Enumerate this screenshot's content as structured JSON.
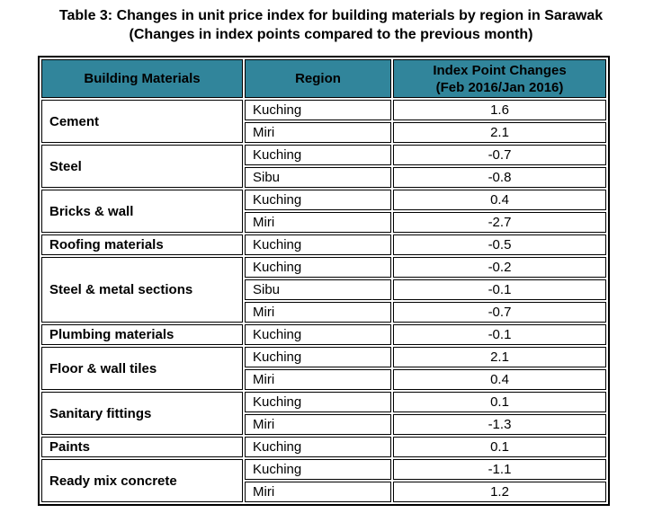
{
  "title": {
    "line1": "Table 3: Changes in unit price index for building materials by region in Sarawak",
    "line2": "(Changes in index points compared to the previous month)"
  },
  "colors": {
    "header_bg": "#31859B",
    "border": "#000000",
    "text": "#000000",
    "page_bg": "#ffffff"
  },
  "table": {
    "headers": {
      "material": "Building Materials",
      "region": "Region",
      "index_change_line1": "Index Point Changes",
      "index_change_line2": "(Feb 2016/Jan 2016)"
    },
    "groups": [
      {
        "material": "Cement",
        "rows": [
          {
            "region": "Kuching",
            "value": "1.6"
          },
          {
            "region": "Miri",
            "value": "2.1"
          }
        ]
      },
      {
        "material": "Steel",
        "rows": [
          {
            "region": "Kuching",
            "value": "-0.7"
          },
          {
            "region": "Sibu",
            "value": "-0.8"
          }
        ]
      },
      {
        "material": "Bricks & wall",
        "rows": [
          {
            "region": "Kuching",
            "value": "0.4"
          },
          {
            "region": "Miri",
            "value": "-2.7"
          }
        ]
      },
      {
        "material": "Roofing materials",
        "rows": [
          {
            "region": "Kuching",
            "value": "-0.5"
          }
        ]
      },
      {
        "material": "Steel & metal sections",
        "rows": [
          {
            "region": "Kuching",
            "value": "-0.2"
          },
          {
            "region": "Sibu",
            "value": "-0.1"
          },
          {
            "region": "Miri",
            "value": "-0.7"
          }
        ]
      },
      {
        "material": "Plumbing materials",
        "rows": [
          {
            "region": "Kuching",
            "value": "-0.1"
          }
        ]
      },
      {
        "material": "Floor & wall tiles",
        "rows": [
          {
            "region": "Kuching",
            "value": "2.1"
          },
          {
            "region": "Miri",
            "value": "0.4"
          }
        ]
      },
      {
        "material": "Sanitary fittings",
        "rows": [
          {
            "region": "Kuching",
            "value": "0.1"
          },
          {
            "region": "Miri",
            "value": "-1.3"
          }
        ]
      },
      {
        "material": "Paints",
        "rows": [
          {
            "region": "Kuching",
            "value": "0.1"
          }
        ]
      },
      {
        "material": "Ready mix concrete",
        "rows": [
          {
            "region": "Kuching",
            "value": "-1.1"
          },
          {
            "region": "Miri",
            "value": "1.2"
          }
        ]
      }
    ]
  },
  "chart_data": {
    "type": "table",
    "title": "Table 3: Changes in unit price index for building materials by region in Sarawak (Changes in index points compared to the previous month)",
    "columns": [
      "Building Materials",
      "Region",
      "Index Point Changes (Feb 2016/Jan 2016)"
    ],
    "rows": [
      [
        "Cement",
        "Kuching",
        1.6
      ],
      [
        "Cement",
        "Miri",
        2.1
      ],
      [
        "Steel",
        "Kuching",
        -0.7
      ],
      [
        "Steel",
        "Sibu",
        -0.8
      ],
      [
        "Bricks & wall",
        "Kuching",
        0.4
      ],
      [
        "Bricks & wall",
        "Miri",
        -2.7
      ],
      [
        "Roofing materials",
        "Kuching",
        -0.5
      ],
      [
        "Steel & metal sections",
        "Kuching",
        -0.2
      ],
      [
        "Steel & metal sections",
        "Sibu",
        -0.1
      ],
      [
        "Steel & metal sections",
        "Miri",
        -0.7
      ],
      [
        "Plumbing materials",
        "Kuching",
        -0.1
      ],
      [
        "Floor & wall tiles",
        "Kuching",
        2.1
      ],
      [
        "Floor & wall tiles",
        "Miri",
        0.4
      ],
      [
        "Sanitary fittings",
        "Kuching",
        0.1
      ],
      [
        "Sanitary fittings",
        "Miri",
        -1.3
      ],
      [
        "Paints",
        "Kuching",
        0.1
      ],
      [
        "Ready mix concrete",
        "Kuching",
        -1.1
      ],
      [
        "Ready mix concrete",
        "Miri",
        1.2
      ]
    ]
  }
}
